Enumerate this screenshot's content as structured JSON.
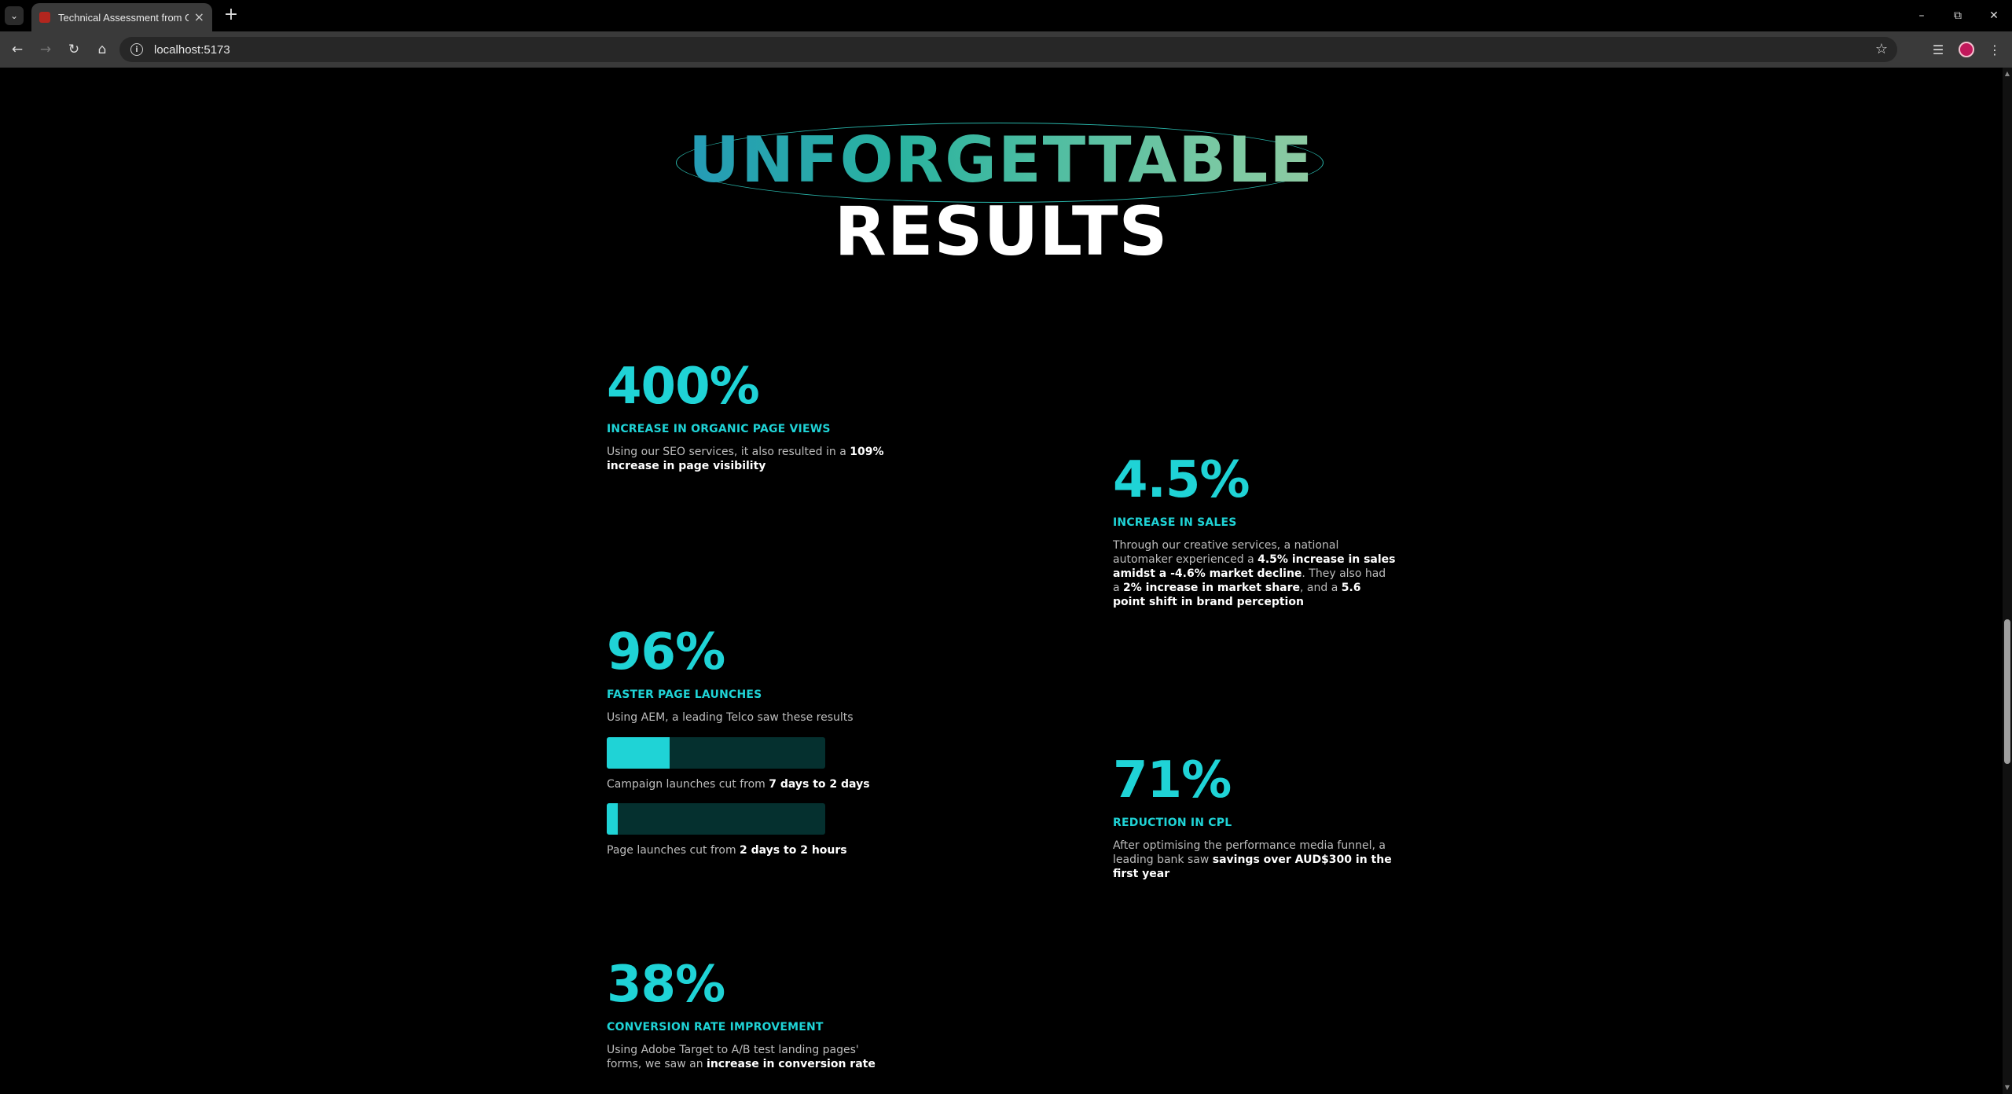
{
  "browser": {
    "tab_title": "Technical Assessment from Gro",
    "url": "localhost:5173"
  },
  "hero": {
    "line1": "UNFORGETTABLE",
    "line2": "RESULTS",
    "gradient_colors": [
      "#2f3fd0",
      "#1f7fcf",
      "#2ab3a0",
      "#7fcaa3",
      "#c9c49a",
      "#e8a27a"
    ]
  },
  "theme": {
    "accent": "#1fd3d6",
    "track": "#05302f"
  },
  "stats": {
    "organic": {
      "value": "400%",
      "label": "INCREASE IN ORGANIC PAGE VIEWS",
      "desc_pre": "Using our SEO services, it also resulted in a ",
      "desc_bold": "109% increase in page visibility"
    },
    "sales": {
      "value": "4.5%",
      "label": "INCREASE IN SALES",
      "d1": "Through our creative services, a national automaker experienced a ",
      "b1": "4.5% increase in sales amidst a -4.6% market decline",
      "d2": ". They also had a ",
      "b2": "2% increase in market share",
      "d3": ", and a ",
      "b3": "5.6 point shift in brand perception"
    },
    "launches": {
      "value": "96%",
      "label": "FASTER PAGE LAUNCHES",
      "desc": "Using AEM, a leading Telco saw these results",
      "bars": [
        {
          "caption_pre": "Campaign launches cut from ",
          "caption_bold": "7 days to 2 days",
          "fill_percent": 28.6
        },
        {
          "caption_pre": "Page launches cut from ",
          "caption_bold": "2 days to 2 hours",
          "fill_percent": 5
        }
      ]
    },
    "cpl": {
      "value": "71%",
      "label": "REDUCTION IN CPL",
      "desc_pre": "After optimising the performance media funnel, a leading bank saw ",
      "desc_bold": "savings over AUD$300 in the first year"
    },
    "conversion": {
      "value": "38%",
      "label": "CONVERSION RATE IMPROVEMENT",
      "desc_pre": "Using Adobe Target to A/B test landing pages' forms, we saw an ",
      "desc_bold": "increase in conversion rate"
    }
  }
}
